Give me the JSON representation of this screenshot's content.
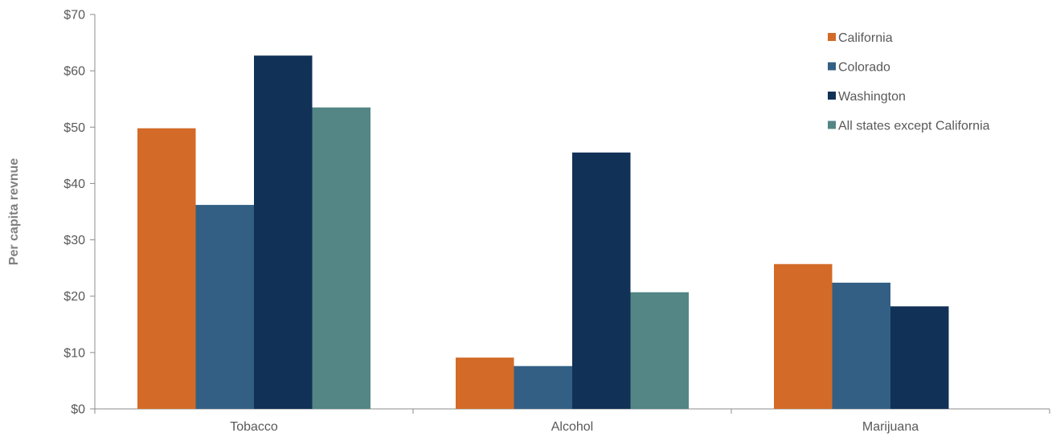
{
  "chart_data": {
    "type": "bar",
    "title": "",
    "xlabel": "",
    "ylabel": "Per capita revnue",
    "ylim": [
      0,
      70
    ],
    "ytick_values": [
      0,
      10,
      20,
      30,
      40,
      50,
      60,
      70
    ],
    "ytick_labels": [
      "$0",
      "$10",
      "$20",
      "$30",
      "$40",
      "$50",
      "$60",
      "$70"
    ],
    "categories": [
      "Tobacco",
      "Alcohol",
      "Marijuana"
    ],
    "series": [
      {
        "name": "California",
        "color": "#d36a27",
        "values": [
          49.8,
          9.1,
          25.7
        ]
      },
      {
        "name": "Colorado",
        "color": "#335f85",
        "values": [
          36.2,
          7.6,
          22.4
        ]
      },
      {
        "name": "Washington",
        "color": "#123157",
        "values": [
          62.7,
          45.5,
          18.2
        ]
      },
      {
        "name": "All states except California",
        "color": "#538685",
        "values": [
          53.5,
          20.7,
          null
        ]
      }
    ],
    "grid": false,
    "legend_position": "top-right"
  }
}
